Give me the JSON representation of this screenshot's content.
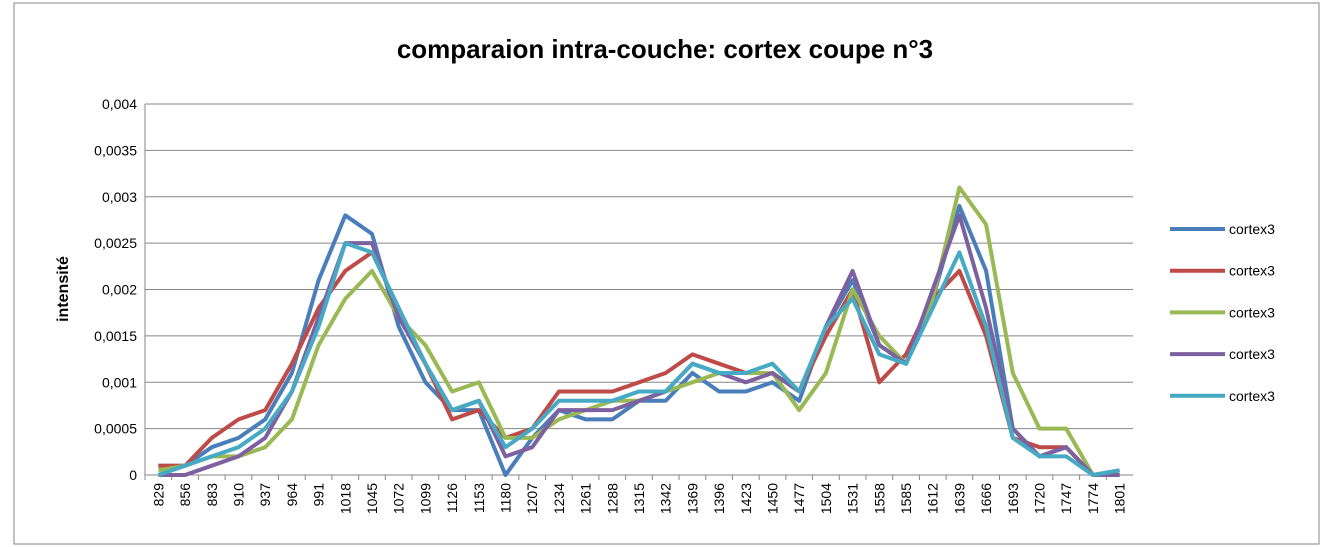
{
  "chart_data": {
    "type": "line",
    "title": "comparaion intra-couche: cortex coupe n°3",
    "y_label": "intensité",
    "categories": [
      "829",
      "856",
      "883",
      "910",
      "937",
      "964",
      "991",
      "1018",
      "1045",
      "1072",
      "1099",
      "1126",
      "1153",
      "1180",
      "1207",
      "1234",
      "1261",
      "1288",
      "1315",
      "1342",
      "1369",
      "1396",
      "1423",
      "1450",
      "1477",
      "1504",
      "1531",
      "1558",
      "1585",
      "1612",
      "1639",
      "1666",
      "1693",
      "1720",
      "1747",
      "1774",
      "1801"
    ],
    "series": [
      {
        "name": "cortex3",
        "color": "#4a7ebb",
        "values": [
          0.0001,
          0.0001,
          0.0003,
          0.0004,
          0.0006,
          0.0011,
          0.0021,
          0.0028,
          0.0026,
          0.0016,
          0.001,
          0.0007,
          0.0007,
          0,
          0.0004,
          0.0007,
          0.0006,
          0.0006,
          0.0008,
          0.0008,
          0.0011,
          0.0009,
          0.0009,
          0.001,
          0.0008,
          0.0016,
          0.0021,
          0.0014,
          0.0012,
          0.0019,
          0.0029,
          0.0022,
          0.0005,
          0.0002,
          0.0003,
          0,
          5e-05
        ]
      },
      {
        "name": "cortex3",
        "color": "#be4b48",
        "values": [
          0.0001,
          0.0001,
          0.0004,
          0.0006,
          0.0007,
          0.0012,
          0.0018,
          0.0022,
          0.0024,
          0.0018,
          0.0012,
          0.0006,
          0.0007,
          0.0004,
          0.0005,
          0.0009,
          0.0009,
          0.0009,
          0.001,
          0.0011,
          0.0013,
          0.0012,
          0.0011,
          0.0011,
          0.0009,
          0.0015,
          0.002,
          0.001,
          0.0013,
          0.0019,
          0.0022,
          0.0015,
          0.0004,
          0.0003,
          0.0003,
          0,
          0
        ]
      },
      {
        "name": "cortex3",
        "color": "#98b954",
        "values": [
          5e-05,
          0.0001,
          0.0002,
          0.0002,
          0.0003,
          0.0006,
          0.0014,
          0.0019,
          0.0022,
          0.0017,
          0.0014,
          0.0009,
          0.001,
          0.0004,
          0.0004,
          0.0006,
          0.0007,
          0.0008,
          0.0008,
          0.0009,
          0.001,
          0.0011,
          0.0011,
          0.0011,
          0.0007,
          0.0011,
          0.002,
          0.0015,
          0.0012,
          0.0019,
          0.0031,
          0.0027,
          0.0011,
          0.0005,
          0.0005,
          0,
          0
        ]
      },
      {
        "name": "cortex3",
        "color": "#7d60a0",
        "values": [
          0,
          0,
          0.0001,
          0.0002,
          0.0004,
          0.0009,
          0.0017,
          0.0025,
          0.0025,
          0.0017,
          0.0012,
          0.0007,
          0.0008,
          0.0002,
          0.0003,
          0.0007,
          0.0007,
          0.0007,
          0.0008,
          0.0009,
          0.0012,
          0.0011,
          0.001,
          0.0011,
          0.0009,
          0.0016,
          0.0022,
          0.0014,
          0.0012,
          0.002,
          0.0028,
          0.0018,
          0.0005,
          0.0002,
          0.0003,
          0,
          0
        ]
      },
      {
        "name": "cortex3",
        "color": "#46aac5",
        "values": [
          0,
          0.0001,
          0.0002,
          0.0003,
          0.0005,
          0.0009,
          0.0016,
          0.0025,
          0.0024,
          0.0018,
          0.0012,
          0.0007,
          0.0008,
          0.0003,
          0.0005,
          0.0008,
          0.0008,
          0.0008,
          0.0009,
          0.0009,
          0.0012,
          0.0011,
          0.0011,
          0.0012,
          0.0009,
          0.0016,
          0.0019,
          0.0013,
          0.0012,
          0.0018,
          0.0024,
          0.0016,
          0.0004,
          0.0002,
          0.0002,
          0,
          5e-05
        ]
      }
    ],
    "ylim": [
      0,
      0.004
    ],
    "yticks": [
      0,
      {
        "value": 0.0005,
        "label": "0,0005"
      },
      {
        "value": 0.001,
        "label": "0,001"
      },
      {
        "value": 0.0015,
        "label": "0,0015"
      },
      {
        "value": 0.002,
        "label": "0,002"
      },
      {
        "value": 0.0025,
        "label": "0,0025"
      },
      {
        "value": 0.003,
        "label": "0,003"
      },
      {
        "value": 0.0035,
        "label": "0,0035"
      },
      {
        "value": 0.004,
        "label": "0,004"
      }
    ],
    "grid": true,
    "legend": "right"
  }
}
